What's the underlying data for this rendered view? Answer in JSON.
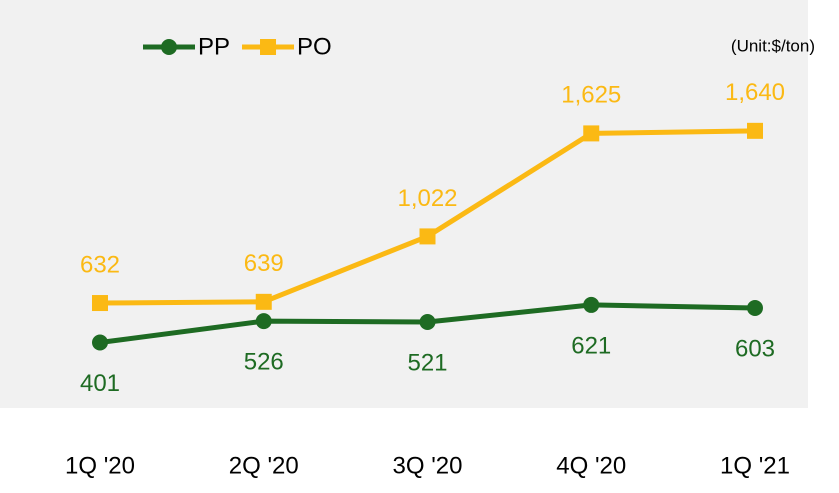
{
  "chart_data": {
    "type": "line",
    "annotation": "(Unit:$/ton)",
    "categories": [
      "1Q '20",
      "2Q '20",
      "3Q '20",
      "4Q '20",
      "1Q '21"
    ],
    "series": [
      {
        "name": "PP",
        "color": "#1e6b23",
        "marker": "circle",
        "values": [
          401,
          526,
          521,
          621,
          603
        ],
        "value_labels": [
          "401",
          "526",
          "521",
          "621",
          "603"
        ],
        "label_position": "below"
      },
      {
        "name": "PO",
        "color": "#fbb914",
        "marker": "square",
        "values": [
          632,
          639,
          1022,
          1625,
          1640
        ],
        "value_labels": [
          "632",
          "639",
          "1,022",
          "1,625",
          "1,640"
        ],
        "label_position": "above"
      }
    ],
    "ylim": [
      0,
      2400
    ],
    "legend": "top-left"
  }
}
